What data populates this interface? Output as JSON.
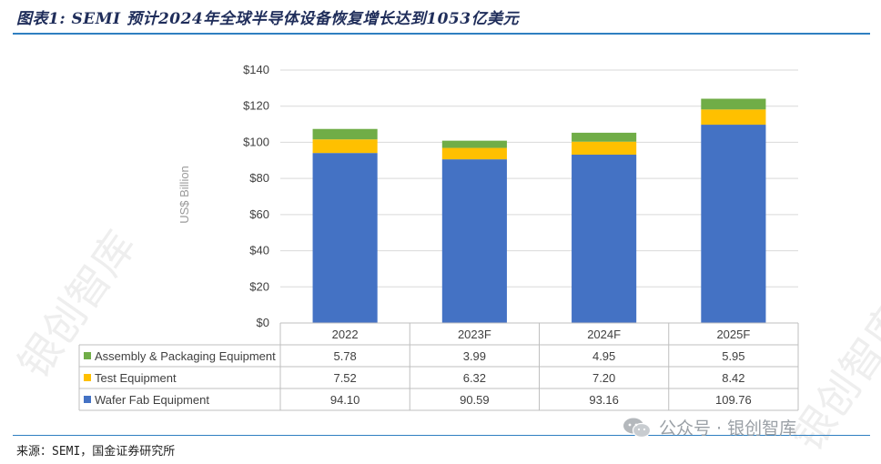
{
  "figure": {
    "title": "图表1: SEMI 预计2024年全球半导体设备恢复增长达到1053亿美元",
    "source": "来源：SEMI，国金证券研究所",
    "watermark": "银创智库",
    "wechat_label": "公众号 · 银创智库"
  },
  "chart_data": {
    "type": "bar",
    "stacked": true,
    "title": "",
    "xlabel": "",
    "ylabel": "US$ Billion",
    "ylim": [
      0,
      140
    ],
    "yticks": [
      "$0",
      "$20",
      "$40",
      "$60",
      "$80",
      "$100",
      "$120",
      "$140"
    ],
    "grid": true,
    "categories": [
      "2022",
      "2023F",
      "2024F",
      "2025F"
    ],
    "series": [
      {
        "name": "Wafer Fab Equipment",
        "color": "#4472c4",
        "values": [
          94.1,
          90.59,
          93.16,
          109.76
        ],
        "labels": [
          "94.10",
          "90.59",
          "93.16",
          "109.76"
        ]
      },
      {
        "name": "Test Equipment",
        "color": "#ffc000",
        "values": [
          7.52,
          6.32,
          7.2,
          8.42
        ],
        "labels": [
          "7.52",
          "6.32",
          "7.20",
          "8.42"
        ]
      },
      {
        "name": "Assembly & Packaging Equipment",
        "color": "#70ad47",
        "values": [
          5.78,
          3.99,
          4.95,
          5.95
        ],
        "labels": [
          "5.78",
          "3.99",
          "4.95",
          "5.95"
        ]
      }
    ],
    "table_row_order": [
      "Assembly & Packaging Equipment",
      "Test Equipment",
      "Wafer Fab Equipment"
    ]
  }
}
